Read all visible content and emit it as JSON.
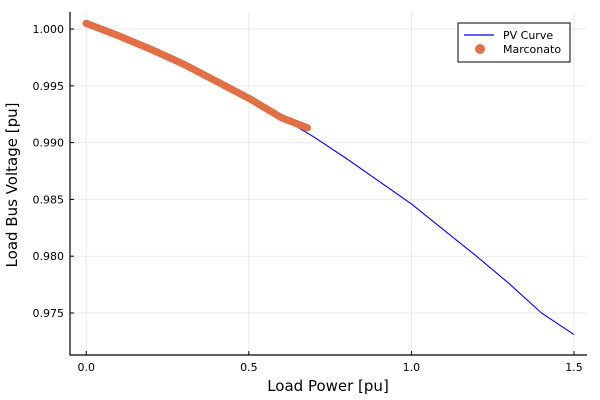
{
  "chart_data": {
    "type": "line",
    "title": "",
    "xlabel": "Load Power [pu]",
    "ylabel": "Load Bus Voltage [pu]",
    "xlim": [
      -0.05,
      1.54
    ],
    "ylim": [
      0.9713,
      1.0015
    ],
    "x_ticks": [
      0.0,
      0.5,
      1.0,
      1.5
    ],
    "x_tick_labels": [
      "0.0",
      "0.5",
      "1.0",
      "1.5"
    ],
    "y_ticks": [
      0.975,
      0.98,
      0.985,
      0.99,
      0.995,
      1.0
    ],
    "y_tick_labels": [
      "0.975",
      "0.980",
      "0.985",
      "0.990",
      "0.995",
      "1.000"
    ],
    "grid": true,
    "legend": {
      "placement": "top-right"
    },
    "series": [
      {
        "name": "PV Curve",
        "kind": "line",
        "color": "#0000ff",
        "x": [
          0.0,
          0.1,
          0.2,
          0.3,
          0.4,
          0.5,
          0.6,
          0.7,
          0.8,
          0.9,
          1.0,
          1.1,
          1.2,
          1.3,
          1.4,
          1.5
        ],
        "y": [
          1.0005,
          0.9994,
          0.9982,
          0.9969,
          0.9954,
          0.9939,
          0.9922,
          0.9905,
          0.9886,
          0.9866,
          0.9846,
          0.9823,
          0.98,
          0.9776,
          0.975,
          0.9731
        ]
      },
      {
        "name": "Marconato",
        "kind": "scatter",
        "color": "#e26f46",
        "x": [
          0.0,
          0.1,
          0.2,
          0.3,
          0.4,
          0.5,
          0.6,
          0.68
        ],
        "y": [
          1.0005,
          0.9994,
          0.9982,
          0.9969,
          0.9954,
          0.9939,
          0.9922,
          0.9913
        ]
      }
    ]
  }
}
